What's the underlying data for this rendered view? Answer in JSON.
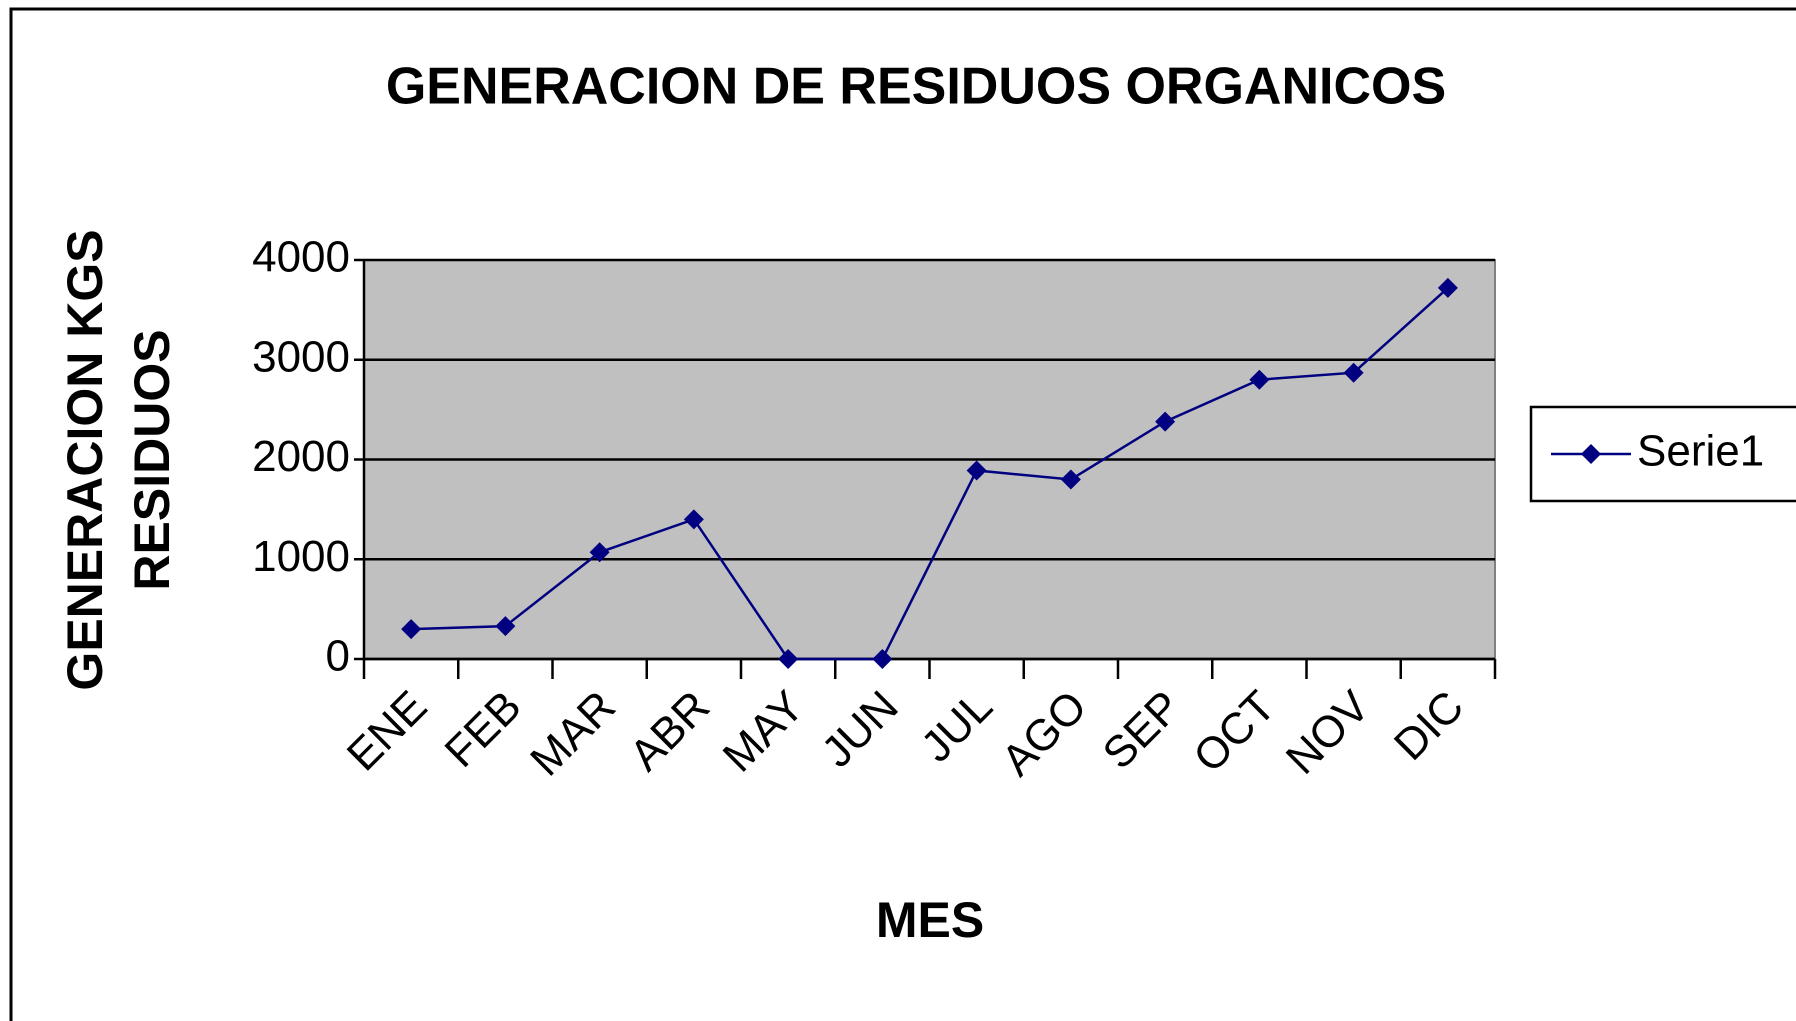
{
  "chart_data": {
    "type": "line",
    "title": "GENERACION DE RESIDUOS ORGANICOS",
    "x_label": "MES",
    "y_label": [
      "GENERACION KGS",
      "RESIDUOS"
    ],
    "categories": [
      "ENE",
      "FEB",
      "MAR",
      "ABR",
      "MAY",
      "JUN",
      "JUL",
      "AGO",
      "SEP",
      "OCT",
      "NOV",
      "DIC"
    ],
    "series": [
      {
        "name": "Serie1",
        "color": "#000080",
        "values": [
          300,
          330,
          1070,
          1400,
          0,
          0,
          1890,
          1800,
          2380,
          2800,
          2870,
          3720
        ]
      }
    ],
    "ylim": [
      0,
      4000
    ],
    "yticks": [
      0,
      1000,
      2000,
      3000,
      4000
    ],
    "grid": true,
    "legend": "right",
    "plot_background": "#c0c0c0"
  }
}
